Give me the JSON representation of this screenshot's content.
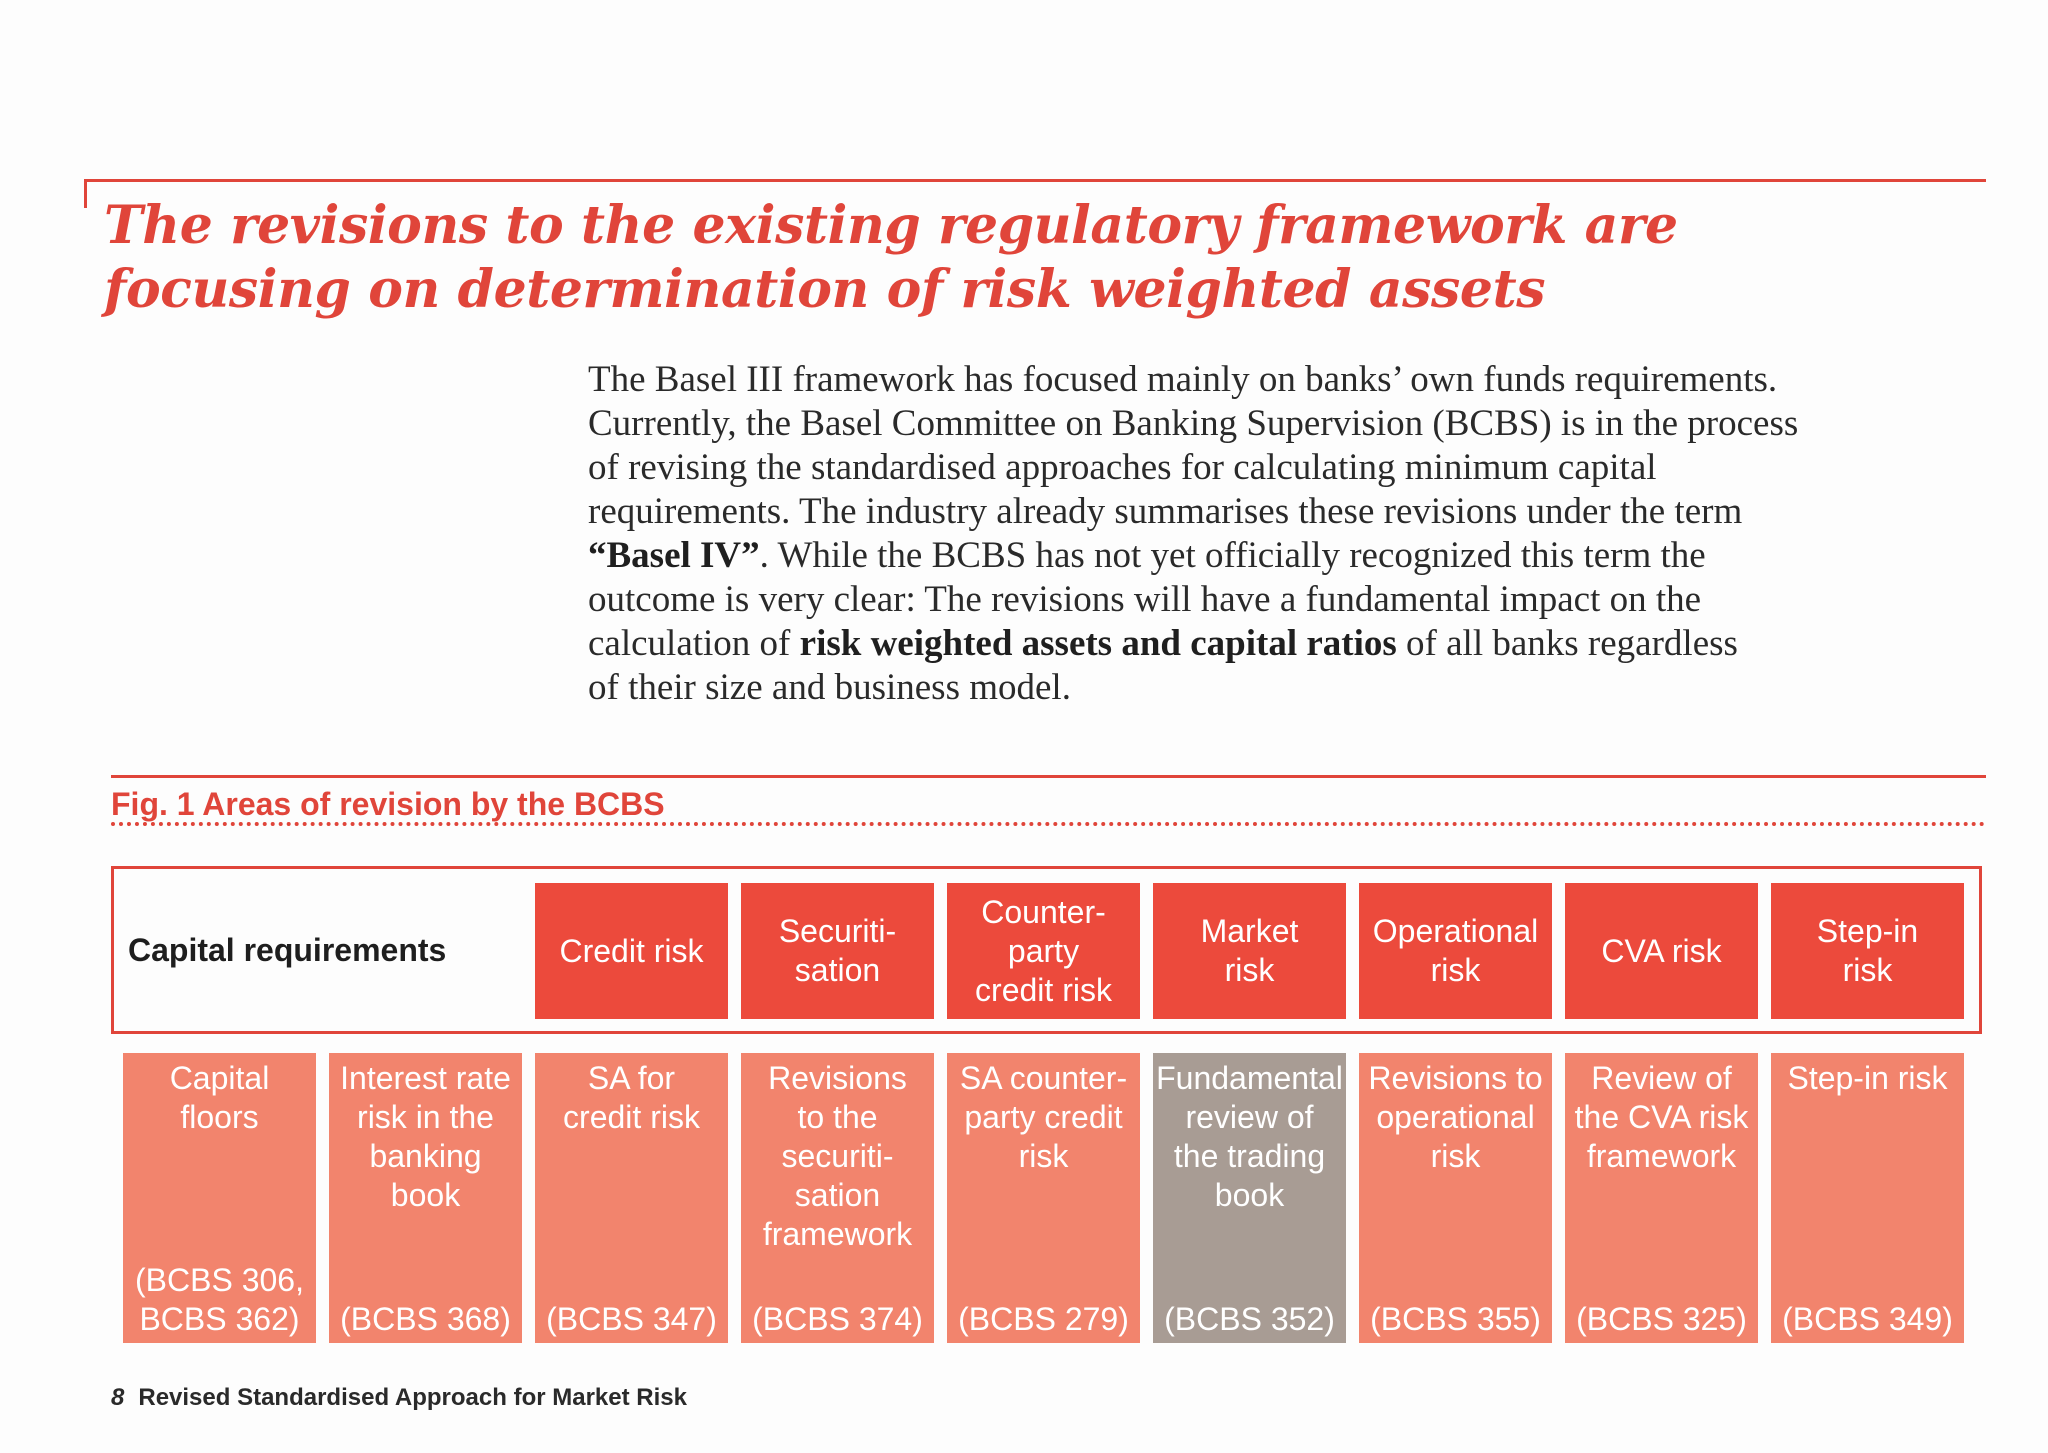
{
  "headline": {
    "line1": "The revisions to the existing regulatory framework are",
    "line2": "focusing on determination of risk weighted assets"
  },
  "intro": {
    "line1": "The Basel III framework has focused mainly on banks’ own funds requirements.",
    "line2": "Currently, the Basel Committee on Banking Supervision (BCBS) is in the process",
    "line3": "of revising the standardised approaches for calculating minimum capital",
    "line4": "requirements. The industry already summarises these revisions under the term",
    "line5_bold": "“Basel IV”",
    "line5_rest": ". While the BCBS has not yet officially recognized this term the",
    "line6": "outcome is very clear: The revisions will have a fundamental impact on the",
    "line7_pre": "calculation of ",
    "line7_bold": "risk weighted assets and capital ratios",
    "line7_post": " of all banks regardless",
    "line8": "of their size and business model."
  },
  "figure": {
    "caption": "Fig. 1  Areas of revision by the BCBS",
    "capital_label": "Capital requirements",
    "risks": [
      {
        "lines": [
          "Credit risk"
        ]
      },
      {
        "lines": [
          "Securiti-",
          "sation"
        ]
      },
      {
        "lines": [
          "Counter-",
          "party",
          "credit risk"
        ]
      },
      {
        "lines": [
          "Market",
          "risk"
        ]
      },
      {
        "lines": [
          "Operational",
          "risk"
        ]
      },
      {
        "lines": [
          "CVA risk"
        ]
      },
      {
        "lines": [
          "Step-in",
          "risk"
        ]
      }
    ],
    "areas": [
      {
        "lines": [
          "Capital",
          "floors"
        ],
        "ref": [
          "(BCBS 306,",
          "BCBS 362)"
        ]
      },
      {
        "lines": [
          "Interest rate",
          "risk in the",
          "banking",
          "book"
        ],
        "ref": [
          "(BCBS 368)"
        ]
      },
      {
        "lines": [
          "SA for",
          "credit risk"
        ],
        "ref": [
          "(BCBS 347)"
        ]
      },
      {
        "lines": [
          "Revisions",
          "to the",
          "securiti-",
          "sation",
          "framework"
        ],
        "ref": [
          "(BCBS 374)"
        ]
      },
      {
        "lines": [
          "SA counter-",
          "party credit",
          "risk"
        ],
        "ref": [
          "(BCBS 279)"
        ]
      },
      {
        "lines": [
          "Fundamental",
          "review of",
          "the trading",
          "book"
        ],
        "ref": [
          "(BCBS 352)"
        ],
        "highlight": true
      },
      {
        "lines": [
          "Revisions to",
          "operational",
          "risk"
        ],
        "ref": [
          "(BCBS 355)"
        ]
      },
      {
        "lines": [
          "Review of",
          "the CVA risk",
          "framework"
        ],
        "ref": [
          "(BCBS 325)"
        ]
      },
      {
        "lines": [
          "Step-in risk"
        ],
        "ref": [
          "(BCBS 349)"
        ]
      }
    ],
    "colors": {
      "accent": "#e0453a",
      "risk_box": "#ec4a3c",
      "area_box": "#f2846d",
      "highlight_box": "#a89c94"
    }
  },
  "footer": {
    "page_number": "8",
    "title": "Revised Standardised Approach for Market Risk"
  }
}
